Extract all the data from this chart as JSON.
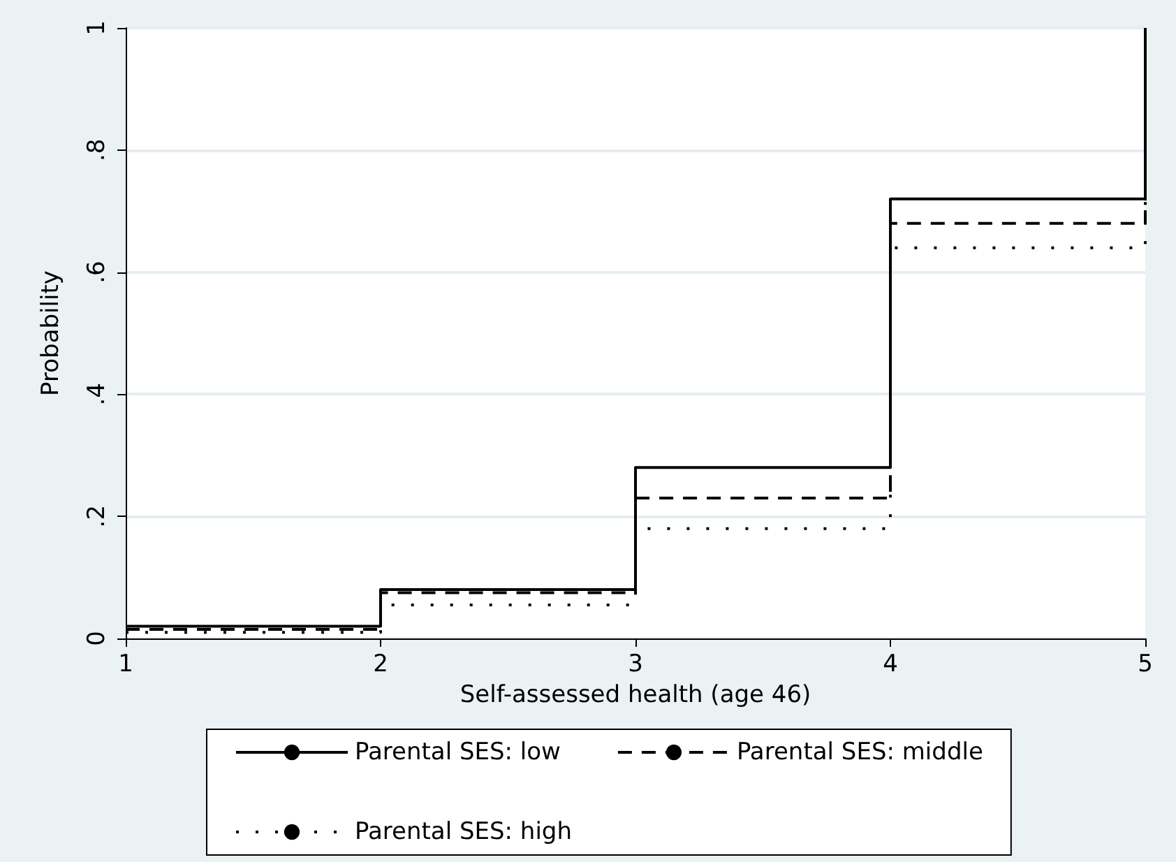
{
  "chart_data": {
    "type": "step",
    "xlabel": "Self-assessed health (age 46)",
    "ylabel": "Probability",
    "x": [
      1,
      2,
      3,
      4,
      5
    ],
    "series": [
      {
        "name": "Parental SES: low",
        "color": "#000000",
        "line_style": "solid",
        "values": [
          0.02,
          0.08,
          0.28,
          0.72,
          1
        ]
      },
      {
        "name": "Parental SES: middle",
        "color": "#000000",
        "line_style": "dashed",
        "values": [
          0.015,
          0.075,
          0.23,
          0.68,
          1
        ]
      },
      {
        "name": "Parental SES: high",
        "color": "#000000",
        "line_style": "dotted",
        "values": [
          0.01,
          0.055,
          0.18,
          0.64,
          1
        ]
      }
    ],
    "xlim": [
      1,
      5
    ],
    "xticks": [
      1,
      2,
      3,
      4,
      5
    ],
    "ylim": [
      0,
      1
    ],
    "yticks": [
      0,
      {
        "value": 0.2,
        "label": ".2"
      },
      {
        "value": 0.4,
        "label": ".4"
      },
      {
        "value": 0.6,
        "label": ".6"
      },
      {
        "value": 0.8,
        "label": ".8"
      },
      1
    ],
    "grid": "y",
    "legend": "bottom",
    "marker": "none"
  }
}
